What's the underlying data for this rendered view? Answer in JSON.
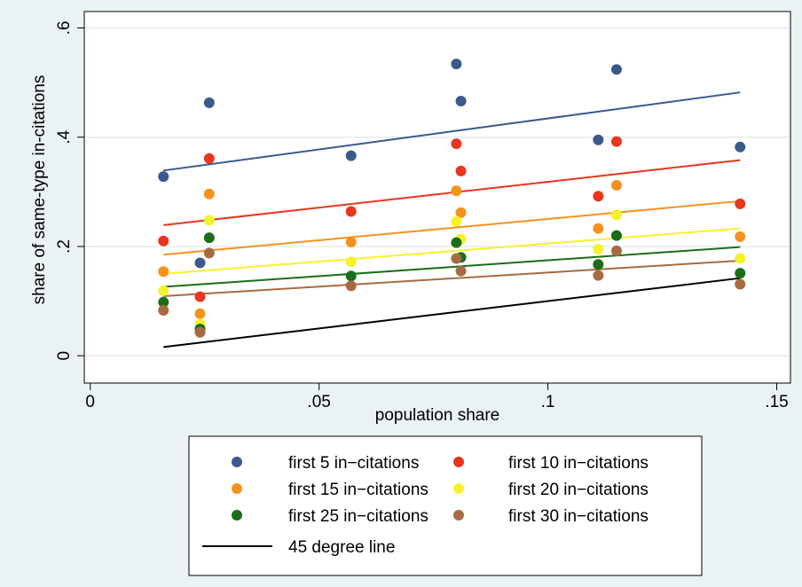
{
  "chart_data": {
    "type": "scatter",
    "xlabel": "population share",
    "ylabel": "share of same-type in-citations",
    "xlim": [
      -0.0013,
      0.153
    ],
    "ylim": [
      -0.05,
      0.63
    ],
    "xticks": [
      0,
      0.05,
      0.1,
      0.15
    ],
    "xtick_labels": [
      "0",
      ".05",
      ".1",
      ".15"
    ],
    "yticks": [
      0,
      0.2,
      0.4,
      0.6
    ],
    "ytick_labels": [
      "0",
      ".2",
      ".4",
      ".6"
    ],
    "grid": "horizontal",
    "legend_position": "bottom",
    "x": [
      0.016,
      0.024,
      0.026,
      0.057,
      0.08,
      0.081,
      0.111,
      0.115,
      0.142
    ],
    "series": [
      {
        "name": "first 5 in−citations",
        "color": "#3a5a8c",
        "values": [
          0.328,
          0.17,
          0.463,
          0.366,
          0.534,
          0.466,
          0.395,
          0.524,
          0.382
        ],
        "fit": [
          0.339,
          0.482
        ]
      },
      {
        "name": "first 10 in−citations",
        "color": "#e8361f",
        "values": [
          0.21,
          0.108,
          0.361,
          0.264,
          0.388,
          0.338,
          0.292,
          0.392,
          0.278
        ],
        "fit": [
          0.239,
          0.358
        ]
      },
      {
        "name": "first 15 in−citations",
        "color": "#f5921e",
        "values": [
          0.154,
          0.077,
          0.296,
          0.208,
          0.302,
          0.262,
          0.233,
          0.312,
          0.218
        ],
        "fit": [
          0.185,
          0.283
        ]
      },
      {
        "name": "first 20 in−citations",
        "color": "#f6f12c",
        "values": [
          0.119,
          0.058,
          0.248,
          0.172,
          0.246,
          0.214,
          0.195,
          0.258,
          0.178
        ],
        "fit": [
          0.15,
          0.233
        ]
      },
      {
        "name": "first 25 in−citations",
        "color": "#1a6e1a",
        "values": [
          0.098,
          0.049,
          0.216,
          0.146,
          0.207,
          0.18,
          0.167,
          0.22,
          0.151
        ],
        "fit": [
          0.126,
          0.199
        ]
      },
      {
        "name": "first 30 in−citations",
        "color": "#a86a42",
        "values": [
          0.083,
          0.043,
          0.188,
          0.128,
          0.178,
          0.155,
          0.147,
          0.192,
          0.131
        ],
        "fit": [
          0.109,
          0.174
        ]
      }
    ],
    "fit_x": [
      0.016,
      0.142
    ],
    "reference_line": {
      "name": "45 degree line",
      "color": "#000000",
      "x": [
        0.016,
        0.142
      ],
      "y": [
        0.016,
        0.142
      ]
    }
  }
}
